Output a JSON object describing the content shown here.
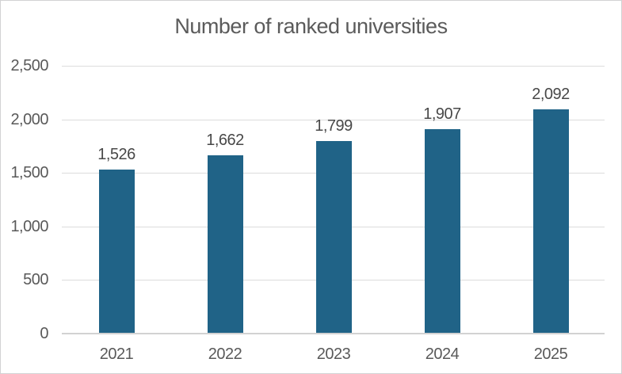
{
  "chart_data": {
    "type": "bar",
    "title": "Number of ranked universities",
    "categories": [
      "2021",
      "2022",
      "2023",
      "2024",
      "2025"
    ],
    "values": [
      1526,
      1662,
      1799,
      1907,
      2092
    ],
    "value_labels": [
      "1,526",
      "1,662",
      "1,799",
      "1,907",
      "2,092"
    ],
    "xlabel": "",
    "ylabel": "",
    "ylim": [
      0,
      2500
    ],
    "yticks": [
      0,
      500,
      1000,
      1500,
      2000,
      2500
    ],
    "ytick_labels": [
      "0",
      "500",
      "1,000",
      "1,500",
      "2,000",
      "2,500"
    ],
    "grid": "horizontal",
    "legend": "none",
    "colors": {
      "bar": "#206387",
      "gridline": "#dcdcdc",
      "baseline": "#d2d2d2",
      "axis_label": "#595959",
      "value_label": "#484848",
      "title": "#5b5b5b"
    }
  }
}
